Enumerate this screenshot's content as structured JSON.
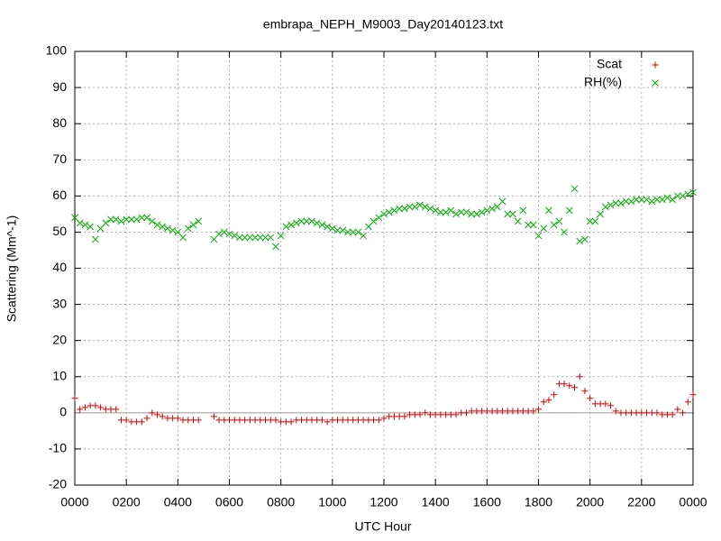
{
  "chart_data": {
    "type": "scatter",
    "title": "embrapa_NEPH_M9003_Day20140123.txt",
    "x_label": "UTC Hour",
    "y_label": "Scattering (Mm^-1)",
    "xlim": [
      0,
      24
    ],
    "ylim": [
      -20,
      100
    ],
    "xticks": [
      {
        "value": 0,
        "label": "0000"
      },
      {
        "value": 2,
        "label": "0200"
      },
      {
        "value": 4,
        "label": "0400"
      },
      {
        "value": 6,
        "label": "0600"
      },
      {
        "value": 8,
        "label": "0800"
      },
      {
        "value": 10,
        "label": "1000"
      },
      {
        "value": 12,
        "label": "1200"
      },
      {
        "value": 14,
        "label": "1400"
      },
      {
        "value": 16,
        "label": "1600"
      },
      {
        "value": 18,
        "label": "1800"
      },
      {
        "value": 20,
        "label": "2000"
      },
      {
        "value": 22,
        "label": "2200"
      },
      {
        "value": 24,
        "label": "0000"
      }
    ],
    "yticks": [
      -20,
      -10,
      0,
      10,
      20,
      30,
      40,
      50,
      60,
      70,
      80,
      90,
      100
    ],
    "grid": true,
    "legend": "top-right",
    "x": [
      0,
      0.2,
      0.4,
      0.6,
      0.8,
      1,
      1.2,
      1.4,
      1.6,
      1.8,
      2,
      2.2,
      2.4,
      2.6,
      2.8,
      3,
      3.2,
      3.4,
      3.6,
      3.8,
      4,
      4.2,
      4.4,
      4.6,
      4.8,
      5.4,
      5.6,
      5.8,
      6,
      6.2,
      6.4,
      6.6,
      6.8,
      7,
      7.2,
      7.4,
      7.6,
      7.8,
      8,
      8.2,
      8.4,
      8.6,
      8.8,
      9,
      9.2,
      9.4,
      9.6,
      9.8,
      10,
      10.2,
      10.4,
      10.6,
      10.8,
      11,
      11.2,
      11.4,
      11.6,
      11.8,
      12,
      12.2,
      12.4,
      12.6,
      12.8,
      13,
      13.2,
      13.4,
      13.6,
      13.8,
      14,
      14.2,
      14.4,
      14.6,
      14.8,
      15,
      15.2,
      15.4,
      15.6,
      15.8,
      16,
      16.2,
      16.4,
      16.6,
      16.8,
      17,
      17.2,
      17.4,
      17.6,
      17.8,
      18,
      18.2,
      18.4,
      18.6,
      18.8,
      19,
      19.2,
      19.4,
      19.6,
      19.8,
      20,
      20.2,
      20.4,
      20.6,
      20.8,
      21,
      21.2,
      21.4,
      21.6,
      21.8,
      22,
      22.2,
      22.4,
      22.6,
      22.8,
      23,
      23.2,
      23.4,
      23.6,
      23.8,
      24
    ],
    "series": [
      {
        "name": "Scat",
        "color": "#dd0000",
        "marker": "plus",
        "values": [
          4,
          1,
          1.5,
          2,
          2,
          1.5,
          1,
          1,
          1,
          -2,
          -2,
          -2.5,
          -2.5,
          -2.5,
          -1.5,
          0,
          -0.5,
          -1,
          -1.5,
          -1.5,
          -1.5,
          -2,
          -2,
          -2,
          -2,
          -1,
          -2,
          -2,
          -2,
          -2,
          -2,
          -2,
          -2,
          -2,
          -2,
          -2,
          -2,
          -2,
          -2.5,
          -2.5,
          -2.5,
          -2,
          -2,
          -2,
          -2,
          -2,
          -2,
          -2.5,
          -2,
          -2,
          -2,
          -2,
          -2,
          -2,
          -2,
          -2,
          -2,
          -2,
          -1.5,
          -1,
          -1,
          -1,
          -1,
          -0.5,
          -0.5,
          -0.5,
          0,
          -0.5,
          -0.5,
          -0.5,
          -0.5,
          -0.5,
          -0.5,
          0,
          0,
          0.5,
          0.5,
          0.5,
          0.5,
          0.5,
          0.5,
          0.5,
          0.5,
          0.5,
          0.5,
          0.5,
          0.5,
          0.5,
          1,
          3,
          3.5,
          5,
          8,
          8,
          7.5,
          7,
          10,
          6,
          4,
          2.5,
          2.5,
          2.5,
          2,
          0.5,
          0,
          0,
          0,
          0,
          0,
          0,
          0,
          0,
          -0.5,
          -0.5,
          -0.5,
          1,
          0,
          3,
          5
        ]
      },
      {
        "name": "RH(%)",
        "color": "#00b000",
        "marker": "cross",
        "values": [
          54,
          52.5,
          52,
          51.5,
          48,
          51,
          52.5,
          53.5,
          53.5,
          53,
          53.5,
          53.5,
          53.5,
          54,
          54,
          53,
          52,
          51.5,
          51,
          50.5,
          50,
          48.5,
          51,
          52,
          53,
          48,
          49.5,
          50,
          49.5,
          49,
          48.5,
          48.5,
          48.5,
          48.5,
          48.5,
          48.5,
          48.5,
          46,
          49,
          51.5,
          52,
          52.5,
          53,
          53,
          53,
          52.5,
          52,
          51.5,
          51,
          50.5,
          50.5,
          50,
          50,
          50,
          49,
          51.5,
          53,
          54,
          55,
          55.5,
          56,
          56.5,
          56.5,
          57,
          57,
          57.5,
          57,
          56.5,
          56,
          55.5,
          55.5,
          56,
          55,
          55.5,
          55.5,
          55,
          55,
          55.5,
          56,
          56.5,
          57,
          58.5,
          55,
          55,
          53,
          56,
          52,
          52,
          49,
          51,
          56,
          52,
          53,
          50,
          56,
          62,
          47.5,
          48,
          53,
          53,
          55,
          57,
          57.5,
          58,
          58,
          58.5,
          58.5,
          59,
          59,
          59,
          58.5,
          59,
          59,
          59.5,
          59,
          60,
          60,
          60.5,
          61
        ]
      }
    ]
  }
}
